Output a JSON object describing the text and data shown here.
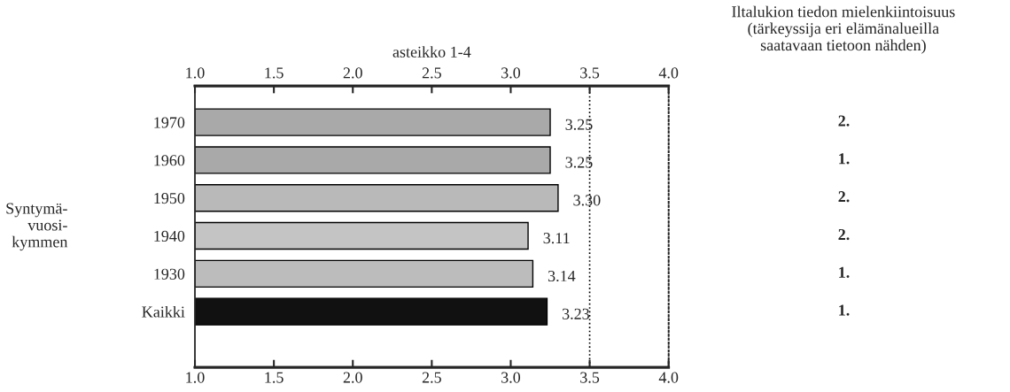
{
  "chart_data": {
    "type": "bar",
    "orientation": "horizontal",
    "x2label": "asteikko 1-4",
    "ylabel": "Syntymä-\nvuosi-\nkymmen",
    "categories": [
      "1970",
      "1960",
      "1950",
      "1940",
      "1930",
      "Kaikki"
    ],
    "values": [
      3.25,
      3.25,
      3.3,
      3.11,
      3.14,
      3.23
    ],
    "value_labels": [
      "3.25",
      "3.25",
      "3.30",
      "3.11",
      "3.14",
      "3.23"
    ],
    "colors": [
      "#a9a9a9",
      "#a9a9a9",
      "#b9b9b9",
      "#c4c4c4",
      "#bcbcbc",
      "#111111"
    ],
    "xlim": [
      1,
      4
    ],
    "xticks": [
      {
        "value": 1,
        "label": "1.0"
      },
      {
        "value": 1.5,
        "label": "1.5"
      },
      {
        "value": 2,
        "label": "2.0"
      },
      {
        "value": 2.5,
        "label": "2.5"
      },
      {
        "value": 3,
        "label": "3.0"
      },
      {
        "value": 3.5,
        "label": "3.5"
      },
      {
        "value": 4,
        "label": "4.0"
      }
    ],
    "x2lim": [
      1,
      4
    ],
    "x2ticks": [
      {
        "value": 1,
        "label": "1.0"
      },
      {
        "value": 1.5,
        "label": "1.5"
      },
      {
        "value": 2,
        "label": "2.0"
      },
      {
        "value": 2.5,
        "label": "2.5"
      },
      {
        "value": 3,
        "label": "3.0"
      },
      {
        "value": 3.5,
        "label": "3.5"
      },
      {
        "value": 4,
        "label": "4.0"
      }
    ],
    "ref_lines": [
      {
        "axis": "x",
        "value": 3.5,
        "line_style": "dotted",
        "color": "#000000"
      }
    ],
    "annotations": [
      "Iltalukion tiedon mielenkiintoisuus\n(tärkeyssija eri elämänalueilla\nsaatavaan tietoon nähden)",
      "2.",
      "1.",
      "2.",
      "2.",
      "1.",
      "1."
    ]
  }
}
